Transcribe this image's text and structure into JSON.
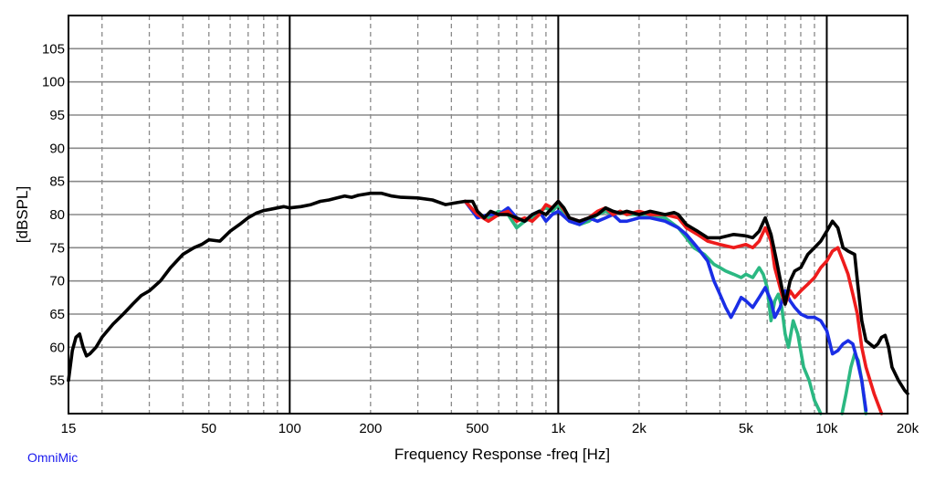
{
  "brand": "OmniMic",
  "chart_data": {
    "type": "line",
    "title": "",
    "xlabel": "Frequency Response -freq [Hz]",
    "ylabel": "[dBSPL]",
    "xscale": "log",
    "xlim": [
      15,
      20000
    ],
    "ylim": [
      50,
      110
    ],
    "grid": true,
    "legend": "none",
    "x_ticks": [
      {
        "value": 15,
        "label": "15"
      },
      {
        "value": 50,
        "label": "50"
      },
      {
        "value": 100,
        "label": "100"
      },
      {
        "value": 200,
        "label": "200"
      },
      {
        "value": 500,
        "label": "500"
      },
      {
        "value": 1000,
        "label": "1k"
      },
      {
        "value": 2000,
        "label": "2k"
      },
      {
        "value": 5000,
        "label": "5k"
      },
      {
        "value": 10000,
        "label": "10k"
      },
      {
        "value": 20000,
        "label": "20k"
      }
    ],
    "y_ticks": [
      55,
      60,
      65,
      70,
      75,
      80,
      85,
      90,
      95,
      100,
      105
    ],
    "series": [
      {
        "color": "#2bb882",
        "points": [
          [
            450,
            82
          ],
          [
            500,
            80
          ],
          [
            550,
            79.5
          ],
          [
            600,
            80.5
          ],
          [
            650,
            80
          ],
          [
            700,
            78
          ],
          [
            750,
            79
          ],
          [
            800,
            79.5
          ],
          [
            850,
            80.5
          ],
          [
            900,
            81
          ],
          [
            950,
            80.5
          ],
          [
            1000,
            81.5
          ],
          [
            1100,
            79
          ],
          [
            1200,
            78.5
          ],
          [
            1300,
            79
          ],
          [
            1400,
            80
          ],
          [
            1500,
            80.5
          ],
          [
            1600,
            80
          ],
          [
            1700,
            80.5
          ],
          [
            1800,
            80
          ],
          [
            2000,
            80
          ],
          [
            2200,
            80
          ],
          [
            2500,
            79.5
          ],
          [
            2800,
            78
          ],
          [
            3000,
            76.5
          ],
          [
            3200,
            75
          ],
          [
            3500,
            74
          ],
          [
            3800,
            72.5
          ],
          [
            4000,
            72
          ],
          [
            4200,
            71.5
          ],
          [
            4500,
            71
          ],
          [
            4800,
            70.5
          ],
          [
            5000,
            71
          ],
          [
            5300,
            70.5
          ],
          [
            5600,
            72
          ],
          [
            5800,
            71
          ],
          [
            6000,
            69
          ],
          [
            6200,
            64
          ],
          [
            6400,
            67
          ],
          [
            6600,
            68
          ],
          [
            6800,
            66
          ],
          [
            7000,
            62
          ],
          [
            7200,
            60
          ],
          [
            7500,
            64
          ],
          [
            7800,
            62
          ],
          [
            8200,
            57
          ],
          [
            8600,
            55
          ],
          [
            9000,
            52
          ],
          [
            9500,
            50
          ]
        ]
      },
      {
        "color": "#2bb882",
        "points": [
          [
            11400,
            50
          ],
          [
            11800,
            53
          ],
          [
            12300,
            57
          ],
          [
            12700,
            59
          ],
          [
            13100,
            58
          ],
          [
            13500,
            55
          ],
          [
            14000,
            50
          ]
        ]
      },
      {
        "color": "#1a2ee6",
        "points": [
          [
            450,
            82
          ],
          [
            500,
            79.5
          ],
          [
            550,
            80
          ],
          [
            600,
            80
          ],
          [
            650,
            81
          ],
          [
            700,
            79.5
          ],
          [
            750,
            79
          ],
          [
            800,
            80
          ],
          [
            850,
            80.5
          ],
          [
            900,
            79
          ],
          [
            950,
            80
          ],
          [
            1000,
            80.5
          ],
          [
            1100,
            79
          ],
          [
            1200,
            78.5
          ],
          [
            1300,
            79.5
          ],
          [
            1400,
            79
          ],
          [
            1500,
            79.5
          ],
          [
            1600,
            80
          ],
          [
            1700,
            79
          ],
          [
            1800,
            79
          ],
          [
            2000,
            79.5
          ],
          [
            2200,
            79.5
          ],
          [
            2500,
            79
          ],
          [
            2800,
            78
          ],
          [
            3000,
            77
          ],
          [
            3300,
            75
          ],
          [
            3600,
            73
          ],
          [
            3800,
            70
          ],
          [
            4000,
            68
          ],
          [
            4200,
            66
          ],
          [
            4400,
            64.5
          ],
          [
            4600,
            66
          ],
          [
            4800,
            67.5
          ],
          [
            5000,
            67
          ],
          [
            5300,
            66
          ],
          [
            5600,
            67.5
          ],
          [
            5900,
            69
          ],
          [
            6200,
            67
          ],
          [
            6400,
            64.5
          ],
          [
            6700,
            66
          ],
          [
            7000,
            68.5
          ],
          [
            7300,
            67
          ],
          [
            7600,
            66
          ],
          [
            8000,
            65
          ],
          [
            8500,
            64.5
          ],
          [
            9000,
            64.5
          ],
          [
            9500,
            64
          ],
          [
            10000,
            62.5
          ],
          [
            10500,
            59
          ],
          [
            11000,
            59.5
          ],
          [
            11500,
            60.5
          ],
          [
            12000,
            61
          ],
          [
            12500,
            60.5
          ],
          [
            13000,
            58
          ],
          [
            13500,
            55
          ],
          [
            14000,
            50.5
          ]
        ]
      },
      {
        "color": "#ee1c1c",
        "points": [
          [
            450,
            82
          ],
          [
            500,
            80
          ],
          [
            550,
            79
          ],
          [
            600,
            80
          ],
          [
            650,
            80.5
          ],
          [
            700,
            79
          ],
          [
            750,
            79.5
          ],
          [
            800,
            79
          ],
          [
            850,
            80
          ],
          [
            900,
            81.5
          ],
          [
            950,
            81
          ],
          [
            1000,
            82
          ],
          [
            1100,
            79.5
          ],
          [
            1200,
            79
          ],
          [
            1300,
            79.5
          ],
          [
            1400,
            80.5
          ],
          [
            1500,
            81
          ],
          [
            1600,
            80
          ],
          [
            1700,
            80.5
          ],
          [
            1800,
            80
          ],
          [
            2000,
            80.5
          ],
          [
            2200,
            80
          ],
          [
            2500,
            80
          ],
          [
            2800,
            79.5
          ],
          [
            3000,
            78
          ],
          [
            3300,
            77
          ],
          [
            3600,
            76
          ],
          [
            4000,
            75.5
          ],
          [
            4500,
            75
          ],
          [
            5000,
            75.5
          ],
          [
            5300,
            75
          ],
          [
            5600,
            76
          ],
          [
            5900,
            78
          ],
          [
            6200,
            76
          ],
          [
            6400,
            72
          ],
          [
            6600,
            70
          ],
          [
            6800,
            68
          ],
          [
            7000,
            66.5
          ],
          [
            7300,
            68.5
          ],
          [
            7600,
            67.5
          ],
          [
            8000,
            68.5
          ],
          [
            8500,
            69.5
          ],
          [
            9000,
            70.5
          ],
          [
            9500,
            72
          ],
          [
            10000,
            73
          ],
          [
            10500,
            74.5
          ],
          [
            11000,
            75
          ],
          [
            11500,
            73
          ],
          [
            12000,
            71
          ],
          [
            12500,
            68
          ],
          [
            13000,
            65
          ],
          [
            13500,
            60
          ],
          [
            14000,
            57
          ],
          [
            15000,
            53
          ],
          [
            16000,
            50
          ]
        ]
      },
      {
        "color": "#000000",
        "points": [
          [
            15,
            55
          ],
          [
            15.5,
            59.5
          ],
          [
            16,
            61.5
          ],
          [
            16.5,
            62
          ],
          [
            17,
            60
          ],
          [
            17.5,
            58.7
          ],
          [
            18,
            59
          ],
          [
            19,
            60
          ],
          [
            20,
            61.5
          ],
          [
            22,
            63.5
          ],
          [
            24,
            65
          ],
          [
            26,
            66.5
          ],
          [
            28,
            67.8
          ],
          [
            30,
            68.5
          ],
          [
            33,
            70
          ],
          [
            36,
            72
          ],
          [
            40,
            74
          ],
          [
            44,
            75
          ],
          [
            47,
            75.5
          ],
          [
            50,
            76.2
          ],
          [
            55,
            76
          ],
          [
            60,
            77.5
          ],
          [
            65,
            78.5
          ],
          [
            70,
            79.5
          ],
          [
            75,
            80.2
          ],
          [
            80,
            80.6
          ],
          [
            85,
            80.8
          ],
          [
            90,
            81
          ],
          [
            95,
            81.2
          ],
          [
            100,
            81
          ],
          [
            110,
            81.2
          ],
          [
            120,
            81.5
          ],
          [
            130,
            82
          ],
          [
            140,
            82.2
          ],
          [
            150,
            82.5
          ],
          [
            160,
            82.8
          ],
          [
            170,
            82.6
          ],
          [
            180,
            82.9
          ],
          [
            200,
            83.2
          ],
          [
            220,
            83.2
          ],
          [
            240,
            82.8
          ],
          [
            260,
            82.6
          ],
          [
            300,
            82.5
          ],
          [
            340,
            82.2
          ],
          [
            380,
            81.5
          ],
          [
            420,
            81.8
          ],
          [
            450,
            82
          ],
          [
            480,
            82
          ],
          [
            500,
            80.5
          ],
          [
            530,
            79.5
          ],
          [
            560,
            80.5
          ],
          [
            600,
            80
          ],
          [
            650,
            80
          ],
          [
            700,
            79.5
          ],
          [
            750,
            79
          ],
          [
            800,
            80
          ],
          [
            850,
            80.5
          ],
          [
            900,
            80
          ],
          [
            950,
            81
          ],
          [
            1000,
            82
          ],
          [
            1050,
            81
          ],
          [
            1100,
            79.5
          ],
          [
            1200,
            79
          ],
          [
            1300,
            79.5
          ],
          [
            1400,
            80
          ],
          [
            1500,
            81
          ],
          [
            1600,
            80.5
          ],
          [
            1700,
            80.2
          ],
          [
            1800,
            80.5
          ],
          [
            2000,
            80
          ],
          [
            2200,
            80.5
          ],
          [
            2500,
            80
          ],
          [
            2700,
            80.3
          ],
          [
            2800,
            80
          ],
          [
            3000,
            78.5
          ],
          [
            3300,
            77.5
          ],
          [
            3600,
            76.5
          ],
          [
            4000,
            76.5
          ],
          [
            4500,
            77
          ],
          [
            5000,
            76.8
          ],
          [
            5300,
            76.5
          ],
          [
            5600,
            77.5
          ],
          [
            5900,
            79.5
          ],
          [
            6200,
            77
          ],
          [
            6500,
            73
          ],
          [
            6800,
            69
          ],
          [
            7000,
            66.5
          ],
          [
            7300,
            70
          ],
          [
            7600,
            71.5
          ],
          [
            8000,
            72
          ],
          [
            8500,
            74
          ],
          [
            9000,
            75
          ],
          [
            9500,
            76
          ],
          [
            10000,
            77.5
          ],
          [
            10500,
            79
          ],
          [
            11000,
            78
          ],
          [
            11500,
            75
          ],
          [
            12000,
            74.5
          ],
          [
            12700,
            74
          ],
          [
            13000,
            70
          ],
          [
            13500,
            64
          ],
          [
            14000,
            61
          ],
          [
            15000,
            60
          ],
          [
            15500,
            60.5
          ],
          [
            16000,
            61.5
          ],
          [
            16500,
            61.8
          ],
          [
            17000,
            60
          ],
          [
            17500,
            57
          ],
          [
            18500,
            55
          ],
          [
            19500,
            53.5
          ],
          [
            20000,
            53
          ]
        ]
      }
    ]
  }
}
